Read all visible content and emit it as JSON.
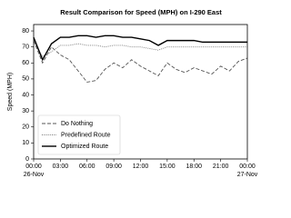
{
  "chart_data": {
    "type": "line",
    "title": "Result Comparison for Speed (MPH) on I-290 East",
    "ylabel": "Speed (MPH)",
    "x": [
      0,
      1,
      2,
      3,
      4,
      5,
      6,
      7,
      8,
      9,
      10,
      11,
      12,
      13,
      14,
      15,
      16,
      17,
      18,
      19,
      20,
      21,
      22,
      23,
      24
    ],
    "series": [
      {
        "name": "Do Nothing",
        "color": "#555555",
        "style": "dashed",
        "values": [
          74,
          60,
          70,
          65,
          62,
          55,
          48,
          49,
          56,
          60,
          57,
          62,
          58,
          55,
          52,
          60,
          56,
          54,
          57,
          55,
          53,
          58,
          55,
          61,
          63
        ]
      },
      {
        "name": "Predefined Route",
        "color": "#777777",
        "style": "dotted",
        "values": [
          73,
          64,
          67,
          71,
          71,
          72,
          71,
          71,
          70,
          71,
          71,
          70,
          70,
          69,
          68,
          70,
          70,
          70,
          70,
          70,
          70,
          70,
          70,
          70,
          70
        ]
      },
      {
        "name": "Optimized Route",
        "color": "#000000",
        "style": "solid",
        "values": [
          76,
          62,
          72,
          76,
          76,
          77,
          77,
          76,
          77,
          77,
          76,
          76,
          75,
          74,
          71,
          74,
          74,
          74,
          74,
          73,
          73,
          73,
          73,
          73,
          73
        ]
      }
    ],
    "xlim": [
      0,
      24
    ],
    "xticks": [
      {
        "value": 0,
        "label": "00:00\n26-Nov"
      },
      {
        "value": 3,
        "label": "03:00"
      },
      {
        "value": 6,
        "label": "06:00"
      },
      {
        "value": 9,
        "label": "09:00"
      },
      {
        "value": 12,
        "label": "12:00"
      },
      {
        "value": 15,
        "label": "15:00"
      },
      {
        "value": 18,
        "label": "18:00"
      },
      {
        "value": 21,
        "label": "21:00"
      },
      {
        "value": 24,
        "label": "00:00\n27-Nov"
      }
    ],
    "ylim": [
      0,
      84
    ],
    "yticks": [
      0,
      10,
      20,
      30,
      40,
      50,
      60,
      70,
      80
    ],
    "legend": "lower left"
  }
}
